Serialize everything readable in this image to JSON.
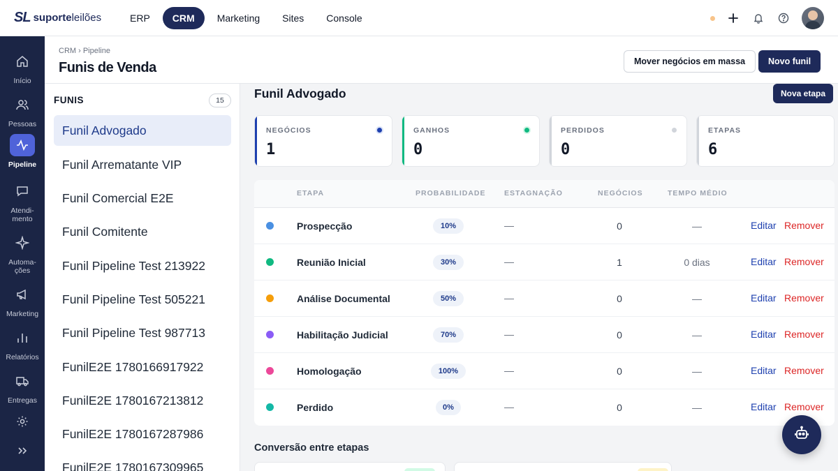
{
  "app": {
    "logo_mark": "SL",
    "logo_text_bold": "suporte",
    "logo_text": "leilões"
  },
  "nav": [
    {
      "label": "ERP",
      "active": false
    },
    {
      "label": "CRM",
      "active": true
    },
    {
      "label": "Marketing",
      "active": false
    },
    {
      "label": "Sites",
      "active": false
    },
    {
      "label": "Console",
      "active": false
    }
  ],
  "sidebar": {
    "items": [
      {
        "label": "Início",
        "icon": "home-icon"
      },
      {
        "label": "Pessoas",
        "icon": "users-icon"
      },
      {
        "label": "Pipeline",
        "icon": "pulse-icon",
        "active": true
      },
      {
        "label": "Atendi-\nmento",
        "icon": "chat-icon"
      },
      {
        "label": "Automa-\nções",
        "icon": "sparkle-icon"
      },
      {
        "label": "Marketing",
        "icon": "megaphone-icon"
      },
      {
        "label": "Relatórios",
        "icon": "bar-chart-icon"
      },
      {
        "label": "Entregas",
        "icon": "truck-icon"
      },
      {
        "label": "",
        "icon": "gear-icon"
      }
    ]
  },
  "header": {
    "breadcrumb": "CRM › Pipeline",
    "title": "Funis de Venda",
    "bulk_move_label": "Mover negócios em massa",
    "new_funnel_label": "Novo funil"
  },
  "funnels": {
    "heading": "FUNIS",
    "count": "15",
    "items": [
      "Funil Advogado",
      "Funil Arrematante VIP",
      "Funil Comercial E2E",
      "Funil Comitente",
      "Funil Pipeline Test 213922",
      "Funil Pipeline Test 505221",
      "Funil Pipeline Test 987713",
      "FunilE2E 1780166917922",
      "FunilE2E 1780167213812",
      "FunilE2E 1780167287986",
      "FunilE2E 1780167309965"
    ]
  },
  "main": {
    "title": "Funil Advogado",
    "new_stage_label": "Nova etapa",
    "stats": [
      {
        "label": "NEGÓCIOS",
        "value": "1",
        "color": "#1e40af"
      },
      {
        "label": "GANHOS",
        "value": "0",
        "color": "#10b981"
      },
      {
        "label": "PERDIDOS",
        "value": "0",
        "color": "#d1d5db"
      },
      {
        "label": "ETAPAS",
        "value": "6",
        "color": "#d1d5db"
      }
    ],
    "table": {
      "headers": [
        "ETAPA",
        "PROBABILIDADE",
        "ESTAGNAÇÃO",
        "NEGÓCIOS",
        "TEMPO MÉDIO"
      ],
      "edit_label": "Editar",
      "remove_label": "Remover",
      "rows": [
        {
          "name": "Prospecção",
          "color": "#4a90e2",
          "probability": "10%",
          "stagnation": "—",
          "deals": "0",
          "avg_time": "—"
        },
        {
          "name": "Reunião Inicial",
          "color": "#10b981",
          "probability": "30%",
          "stagnation": "—",
          "deals": "1",
          "avg_time": "0 dias"
        },
        {
          "name": "Análise Documental",
          "color": "#f59e0b",
          "probability": "50%",
          "stagnation": "—",
          "deals": "0",
          "avg_time": "—"
        },
        {
          "name": "Habilitação Judicial",
          "color": "#8b5cf6",
          "probability": "70%",
          "stagnation": "—",
          "deals": "0",
          "avg_time": "—"
        },
        {
          "name": "Homologação",
          "color": "#ec4899",
          "probability": "100%",
          "stagnation": "—",
          "deals": "0",
          "avg_time": "—"
        },
        {
          "name": "Perdido",
          "color": "#14b8a6",
          "probability": "0%",
          "stagnation": "—",
          "deals": "0",
          "avg_time": "—"
        }
      ]
    },
    "conversion_title": "Conversão entre etapas"
  }
}
